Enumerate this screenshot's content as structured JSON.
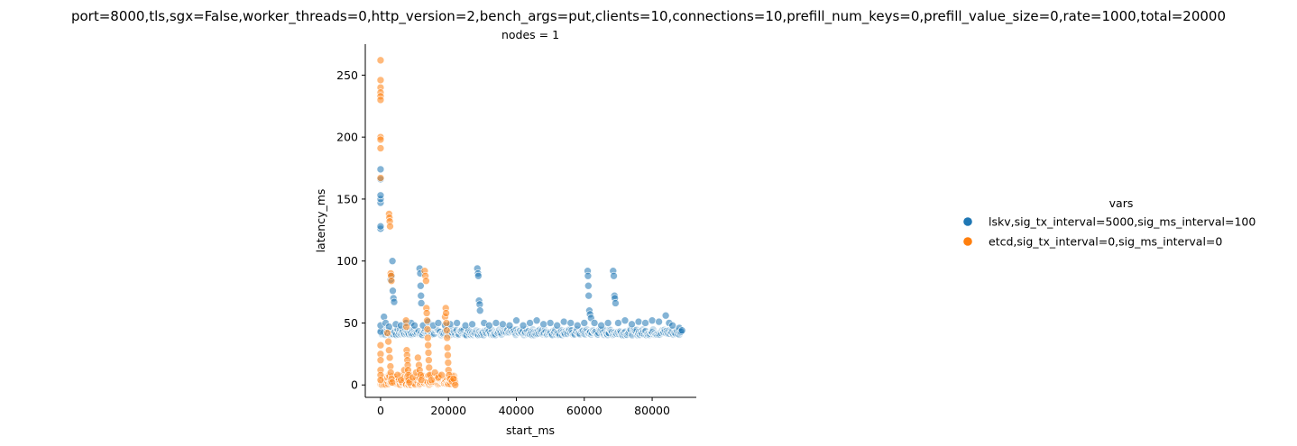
{
  "chart_data": {
    "type": "scatter",
    "title": "port=8000,tls,sgx=False,worker_threads=0,http_version=2,bench_args=put,clients=10,connections=10,prefill_num_keys=0,prefill_value_size=0,rate=1000,total=20000",
    "subtitle": "nodes = 1",
    "xlabel": "start_ms",
    "ylabel": "latency_ms",
    "xlim": [
      -4500,
      93000
    ],
    "ylim": [
      -10,
      275
    ],
    "xticks": [
      0,
      20000,
      40000,
      60000,
      80000
    ],
    "yticks": [
      0,
      50,
      100,
      150,
      200,
      250
    ],
    "grid": false,
    "legend": {
      "title": "vars",
      "placement": "right"
    },
    "series": [
      {
        "name": "lskv,sig_tx_interval=5000,sig_ms_interval=100",
        "color": "#1f77b4",
        "points": [
          [
            0,
            43
          ],
          [
            0,
            48
          ],
          [
            0,
            126
          ],
          [
            0,
            128
          ],
          [
            0,
            147
          ],
          [
            0,
            150
          ],
          [
            0,
            153
          ],
          [
            0,
            166
          ],
          [
            0,
            174
          ],
          [
            1000,
            55
          ],
          [
            1500,
            50
          ],
          [
            2500,
            47
          ],
          [
            3000,
            85
          ],
          [
            3300,
            88
          ],
          [
            3500,
            100
          ],
          [
            3600,
            76
          ],
          [
            3800,
            70
          ],
          [
            4000,
            67
          ],
          [
            4500,
            49
          ],
          [
            6000,
            48
          ],
          [
            7500,
            50
          ],
          [
            9000,
            50
          ],
          [
            10000,
            48
          ],
          [
            11500,
            94
          ],
          [
            11700,
            90
          ],
          [
            11800,
            80
          ],
          [
            11900,
            72
          ],
          [
            12000,
            66
          ],
          [
            12500,
            48
          ],
          [
            14000,
            51
          ],
          [
            15500,
            48
          ],
          [
            17000,
            50
          ],
          [
            19000,
            48
          ],
          [
            20500,
            49
          ],
          [
            22500,
            50
          ],
          [
            25000,
            48
          ],
          [
            27000,
            49
          ],
          [
            28500,
            94
          ],
          [
            28700,
            90
          ],
          [
            28800,
            88
          ],
          [
            29000,
            68
          ],
          [
            29200,
            65
          ],
          [
            29300,
            60
          ],
          [
            30500,
            50
          ],
          [
            32000,
            48
          ],
          [
            34000,
            50
          ],
          [
            36000,
            49
          ],
          [
            38000,
            48
          ],
          [
            40000,
            52
          ],
          [
            42000,
            48
          ],
          [
            44000,
            50
          ],
          [
            46000,
            52
          ],
          [
            48000,
            49
          ],
          [
            50000,
            50
          ],
          [
            52000,
            48
          ],
          [
            54000,
            51
          ],
          [
            56000,
            50
          ],
          [
            58000,
            48
          ],
          [
            60000,
            50
          ],
          [
            61000,
            92
          ],
          [
            61100,
            88
          ],
          [
            61200,
            80
          ],
          [
            61300,
            72
          ],
          [
            61500,
            60
          ],
          [
            61700,
            57
          ],
          [
            62000,
            54
          ],
          [
            63000,
            50
          ],
          [
            65000,
            48
          ],
          [
            67000,
            50
          ],
          [
            68500,
            92
          ],
          [
            68700,
            88
          ],
          [
            68900,
            72
          ],
          [
            69000,
            70
          ],
          [
            69200,
            66
          ],
          [
            70000,
            50
          ],
          [
            72000,
            52
          ],
          [
            74000,
            49
          ],
          [
            76000,
            51
          ],
          [
            78000,
            50
          ],
          [
            80000,
            52
          ],
          [
            82000,
            51
          ],
          [
            84000,
            56
          ],
          [
            85000,
            50
          ],
          [
            86000,
            48
          ],
          [
            88000,
            46
          ],
          [
            88500,
            43
          ],
          [
            88800,
            44
          ]
        ]
      },
      {
        "name": "etcd,sig_tx_interval=0,sig_ms_interval=0",
        "color": "#ff7f0e",
        "points": [
          [
            0,
            262
          ],
          [
            0,
            246
          ],
          [
            0,
            240
          ],
          [
            0,
            236
          ],
          [
            0,
            233
          ],
          [
            0,
            230
          ],
          [
            0,
            200
          ],
          [
            0,
            198
          ],
          [
            0,
            191
          ],
          [
            0,
            167
          ],
          [
            0,
            32
          ],
          [
            0,
            25
          ],
          [
            0,
            20
          ],
          [
            0,
            12
          ],
          [
            0,
            8
          ],
          [
            0,
            4
          ],
          [
            2500,
            138
          ],
          [
            2600,
            135
          ],
          [
            2700,
            132
          ],
          [
            2800,
            128
          ],
          [
            3000,
            90
          ],
          [
            3100,
            88
          ],
          [
            3200,
            84
          ],
          [
            2000,
            42
          ],
          [
            2300,
            35
          ],
          [
            2500,
            28
          ],
          [
            2700,
            22
          ],
          [
            2900,
            15
          ],
          [
            3000,
            10
          ],
          [
            3200,
            5
          ],
          [
            3400,
            2
          ],
          [
            5000,
            8
          ],
          [
            6000,
            4
          ],
          [
            7000,
            12
          ],
          [
            7500,
            52
          ],
          [
            7600,
            47
          ],
          [
            7700,
            28
          ],
          [
            7800,
            24
          ],
          [
            7900,
            20
          ],
          [
            8000,
            16
          ],
          [
            8100,
            12
          ],
          [
            8200,
            8
          ],
          [
            8300,
            4
          ],
          [
            8500,
            2
          ],
          [
            9500,
            6
          ],
          [
            10500,
            10
          ],
          [
            11000,
            22
          ],
          [
            11300,
            16
          ],
          [
            11500,
            12
          ],
          [
            11800,
            8
          ],
          [
            12000,
            4
          ],
          [
            13000,
            92
          ],
          [
            13200,
            88
          ],
          [
            13400,
            84
          ],
          [
            13500,
            62
          ],
          [
            13600,
            58
          ],
          [
            13700,
            52
          ],
          [
            13800,
            45
          ],
          [
            13900,
            38
          ],
          [
            14000,
            32
          ],
          [
            14100,
            26
          ],
          [
            14200,
            20
          ],
          [
            14300,
            14
          ],
          [
            14500,
            8
          ],
          [
            15000,
            4
          ],
          [
            16000,
            10
          ],
          [
            17000,
            6
          ],
          [
            18000,
            8
          ],
          [
            19000,
            55
          ],
          [
            19200,
            62
          ],
          [
            19300,
            58
          ],
          [
            19400,
            50
          ],
          [
            19500,
            44
          ],
          [
            19600,
            38
          ],
          [
            19700,
            30
          ],
          [
            19800,
            24
          ],
          [
            19900,
            18
          ],
          [
            20000,
            12
          ],
          [
            20200,
            8
          ],
          [
            20500,
            5
          ],
          [
            21000,
            3
          ],
          [
            21500,
            5
          ],
          [
            22000,
            0
          ]
        ]
      }
    ]
  }
}
